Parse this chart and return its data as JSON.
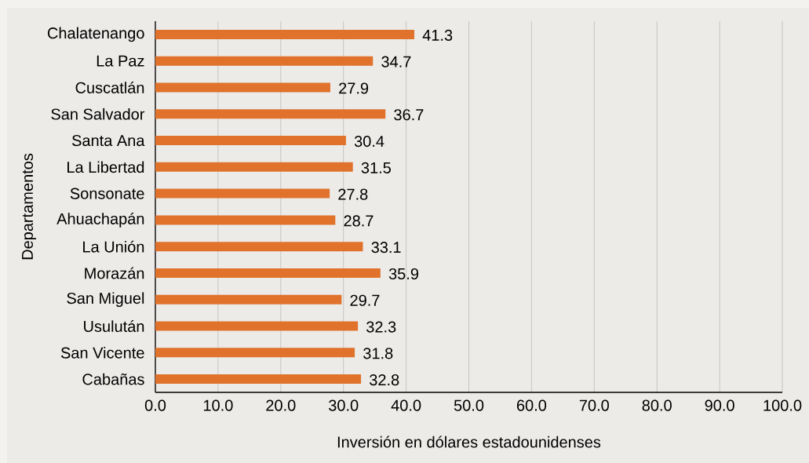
{
  "chart_data": {
    "type": "bar",
    "orientation": "horizontal",
    "categories": [
      "Chalatenango",
      "La Paz",
      "Cuscatlán",
      "San Salvador",
      "Santa Ana",
      "La Libertad",
      "Sonsonate",
      "Ahuachapán",
      "La Unión",
      "Morazán",
      "San Miguel",
      "Usulután",
      "San Vicente",
      "Cabañas"
    ],
    "values": [
      41.3,
      34.7,
      27.9,
      36.7,
      30.4,
      31.5,
      27.8,
      28.7,
      33.1,
      35.9,
      29.7,
      32.3,
      31.8,
      32.8
    ],
    "color": "#e0722b",
    "xlim": [
      0,
      100
    ],
    "xticks": [
      {
        "value": 0,
        "label": "0.0"
      },
      {
        "value": 10,
        "label": "10.0"
      },
      {
        "value": 20,
        "label": "20.0"
      },
      {
        "value": 30,
        "label": "30.0"
      },
      {
        "value": 40,
        "label": "40.0"
      },
      {
        "value": 50,
        "label": "50.0"
      },
      {
        "value": 60,
        "label": "60.0"
      },
      {
        "value": 70,
        "label": "70.0"
      },
      {
        "value": 80,
        "label": "80.0"
      },
      {
        "value": 90,
        "label": "90.0"
      },
      {
        "value": 100,
        "label": "100.0"
      }
    ],
    "xlabel": "Inversión en dólares estadounidenses",
    "ylabel": "Departamentos",
    "grid": "x",
    "data_labels": true
  }
}
